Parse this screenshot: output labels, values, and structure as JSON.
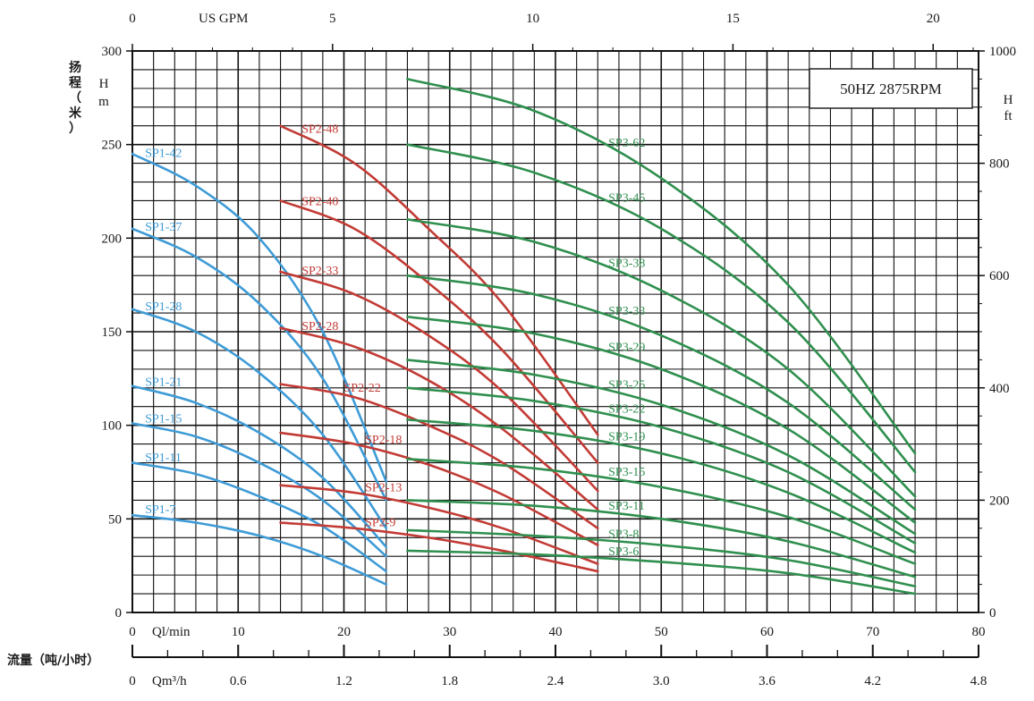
{
  "chart_data": {
    "type": "line",
    "legend_box": "50HZ  2875RPM",
    "left_axis": {
      "label_cn": "扬程（米）",
      "label": "H m",
      "range": [
        0,
        300
      ],
      "ticks": [
        0,
        50,
        100,
        150,
        200,
        250,
        300
      ]
    },
    "right_axis": {
      "label": "H ft",
      "range": [
        0,
        1000
      ],
      "ticks": [
        0,
        200,
        400,
        600,
        800,
        1000
      ]
    },
    "top_axis": {
      "label": "US GPM",
      "ticks": [
        0,
        5,
        10,
        15,
        20
      ]
    },
    "bottom_axis_lmin": {
      "label": "Ql/min",
      "range": [
        0,
        80
      ],
      "ticks": [
        0,
        10,
        20,
        30,
        40,
        50,
        60,
        70,
        80
      ]
    },
    "bottom_axis_m3h": {
      "label": "Qm³/h",
      "ticks": [
        "0",
        "0.6",
        "1.2",
        "1.8",
        "2.4",
        "3.0",
        "3.6",
        "4.2",
        "4.8"
      ]
    },
    "flow_label_cn": "流量（吨/小时）",
    "series": [
      {
        "name": "SP1-42",
        "group": "SP1",
        "color": "#3e9bd6",
        "x": [
          0,
          6,
          12,
          18,
          24
        ],
        "y": [
          245,
          228,
          200,
          150,
          70
        ]
      },
      {
        "name": "SP1-37",
        "group": "SP1",
        "color": "#3e9bd6",
        "x": [
          0,
          6,
          12,
          18,
          24
        ],
        "y": [
          205,
          190,
          165,
          125,
          60
        ]
      },
      {
        "name": "SP1-28",
        "group": "SP1",
        "color": "#3e9bd6",
        "x": [
          0,
          6,
          12,
          18,
          24
        ],
        "y": [
          162,
          150,
          128,
          95,
          45
        ]
      },
      {
        "name": "SP1-21",
        "group": "SP1",
        "color": "#3e9bd6",
        "x": [
          0,
          6,
          12,
          18,
          24
        ],
        "y": [
          121,
          112,
          96,
          72,
          35
        ]
      },
      {
        "name": "SP1-15",
        "group": "SP1",
        "color": "#3e9bd6",
        "x": [
          0,
          6,
          12,
          18,
          24
        ],
        "y": [
          101,
          94,
          80,
          60,
          30
        ]
      },
      {
        "name": "SP1-11",
        "group": "SP1",
        "color": "#3e9bd6",
        "x": [
          0,
          6,
          12,
          18,
          24
        ],
        "y": [
          80,
          74,
          62,
          46,
          22
        ]
      },
      {
        "name": "SP1-7",
        "group": "SP1",
        "color": "#3e9bd6",
        "x": [
          0,
          6,
          12,
          18,
          24
        ],
        "y": [
          52,
          48,
          41,
          30,
          15
        ]
      },
      {
        "name": "SP2-48",
        "group": "SP2",
        "color": "#c23b35",
        "x": [
          14,
          21,
          28,
          35,
          44
        ],
        "y": [
          260,
          240,
          205,
          165,
          95
        ]
      },
      {
        "name": "SP2-40",
        "group": "SP2",
        "color": "#c23b35",
        "x": [
          14,
          21,
          28,
          35,
          44
        ],
        "y": [
          220,
          205,
          176,
          140,
          80
        ]
      },
      {
        "name": "SP2-33",
        "group": "SP2",
        "color": "#c23b35",
        "x": [
          14,
          21,
          28,
          35,
          44
        ],
        "y": [
          182,
          170,
          148,
          118,
          65
        ]
      },
      {
        "name": "SP2-28",
        "group": "SP2",
        "color": "#c23b35",
        "x": [
          14,
          21,
          28,
          35,
          44
        ],
        "y": [
          152,
          142,
          124,
          98,
          55
        ]
      },
      {
        "name": "SP2-22",
        "group": "SP2",
        "color": "#c23b35",
        "x": [
          14,
          21,
          28,
          35,
          44
        ],
        "y": [
          122,
          115,
          100,
          80,
          45
        ]
      },
      {
        "name": "SP2-18",
        "group": "SP2",
        "color": "#c23b35",
        "x": [
          14,
          21,
          28,
          35,
          44
        ],
        "y": [
          96,
          90,
          79,
          63,
          36
        ]
      },
      {
        "name": "SP2-13",
        "group": "SP2",
        "color": "#c23b35",
        "x": [
          14,
          21,
          28,
          35,
          44
        ],
        "y": [
          68,
          64,
          56,
          45,
          26
        ]
      },
      {
        "name": "SP2-9",
        "group": "SP2",
        "color": "#c23b35",
        "x": [
          14,
          21,
          28,
          35,
          44
        ],
        "y": [
          48,
          45,
          40,
          33,
          22
        ]
      },
      {
        "name": "SP3-62",
        "group": "SP3",
        "color": "#2f8f4e",
        "x": [
          26,
          38,
          50,
          62,
          74
        ],
        "y": [
          285,
          268,
          232,
          175,
          85
        ]
      },
      {
        "name": "SP3-45",
        "group": "SP3",
        "color": "#2f8f4e",
        "x": [
          26,
          38,
          50,
          62,
          74
        ],
        "y": [
          250,
          235,
          205,
          155,
          75
        ]
      },
      {
        "name": "SP3-38",
        "group": "SP3",
        "color": "#2f8f4e",
        "x": [
          26,
          38,
          50,
          62,
          74
        ],
        "y": [
          210,
          198,
          172,
          130,
          62
        ]
      },
      {
        "name": "SP3-33",
        "group": "SP3",
        "color": "#2f8f4e",
        "x": [
          26,
          38,
          50,
          62,
          74
        ],
        "y": [
          180,
          170,
          148,
          112,
          55
        ]
      },
      {
        "name": "SP3-29",
        "group": "SP3",
        "color": "#2f8f4e",
        "x": [
          26,
          38,
          50,
          62,
          74
        ],
        "y": [
          158,
          149,
          130,
          98,
          48
        ]
      },
      {
        "name": "SP3-25",
        "group": "SP3",
        "color": "#2f8f4e",
        "x": [
          26,
          38,
          50,
          62,
          74
        ],
        "y": [
          135,
          127,
          111,
          84,
          42
        ]
      },
      {
        "name": "SP3-22",
        "group": "SP3",
        "color": "#2f8f4e",
        "x": [
          26,
          38,
          50,
          62,
          74
        ],
        "y": [
          120,
          113,
          99,
          75,
          37
        ]
      },
      {
        "name": "SP3-19",
        "group": "SP3",
        "color": "#2f8f4e",
        "x": [
          26,
          38,
          50,
          62,
          74
        ],
        "y": [
          103,
          97,
          85,
          64,
          32
        ]
      },
      {
        "name": "SP3-15",
        "group": "SP3",
        "color": "#2f8f4e",
        "x": [
          26,
          38,
          50,
          62,
          74
        ],
        "y": [
          82,
          77,
          67,
          51,
          26
        ]
      },
      {
        "name": "SP3-11",
        "group": "SP3",
        "color": "#2f8f4e",
        "x": [
          26,
          38,
          50,
          62,
          74
        ],
        "y": [
          60,
          57,
          50,
          38,
          19
        ]
      },
      {
        "name": "SP3-8",
        "group": "SP3",
        "color": "#2f8f4e",
        "x": [
          26,
          38,
          50,
          62,
          74
        ],
        "y": [
          44,
          41,
          36,
          28,
          14
        ]
      },
      {
        "name": "SP3-6",
        "group": "SP3",
        "color": "#2f8f4e",
        "x": [
          26,
          38,
          50,
          62,
          74
        ],
        "y": [
          33,
          31,
          27,
          21,
          10
        ]
      }
    ],
    "curve_labels": [
      {
        "text": "SP1-42",
        "series": "SP1-42",
        "color": "#3e9bd6",
        "at_x": 1.2
      },
      {
        "text": "SP1-37",
        "series": "SP1-37",
        "color": "#3e9bd6",
        "at_x": 1.2
      },
      {
        "text": "SP1-28",
        "series": "SP1-28",
        "color": "#3e9bd6",
        "at_x": 1.2
      },
      {
        "text": "SP1-21",
        "series": "SP1-21",
        "color": "#3e9bd6",
        "at_x": 1.2
      },
      {
        "text": "SP1-15",
        "series": "SP1-15",
        "color": "#3e9bd6",
        "at_x": 1.2
      },
      {
        "text": "SP1-11",
        "series": "SP1-11",
        "color": "#3e9bd6",
        "at_x": 1.2
      },
      {
        "text": "SP1-7",
        "series": "SP1-7",
        "color": "#3e9bd6",
        "at_x": 1.2
      },
      {
        "text": "SP2-48",
        "series": "SP2-48",
        "color": "#c23b35",
        "at_x": 16
      },
      {
        "text": "SP2-40",
        "series": "SP2-40",
        "color": "#c23b35",
        "at_x": 16
      },
      {
        "text": "SP2-33",
        "series": "SP2-33",
        "color": "#c23b35",
        "at_x": 16
      },
      {
        "text": "SP2-28",
        "series": "SP2-28",
        "color": "#c23b35",
        "at_x": 16
      },
      {
        "text": "SP2-22",
        "series": "SP2-22",
        "color": "#c23b35",
        "at_x": 20
      },
      {
        "text": "SP2-18",
        "series": "SP2-18",
        "color": "#c23b35",
        "at_x": 22
      },
      {
        "text": "SP2-13",
        "series": "SP2-13",
        "color": "#c23b35",
        "at_x": 22
      },
      {
        "text": "SP2-9",
        "series": "SP2-9",
        "color": "#c23b35",
        "at_x": 22
      },
      {
        "text": "SP3-62",
        "series": "SP3-62",
        "color": "#2f8f4e",
        "at_x": 45
      },
      {
        "text": "SP3-45",
        "series": "SP3-45",
        "color": "#2f8f4e",
        "at_x": 45
      },
      {
        "text": "SP3-38",
        "series": "SP3-38",
        "color": "#2f8f4e",
        "at_x": 45
      },
      {
        "text": "SP3-33",
        "series": "SP3-33",
        "color": "#2f8f4e",
        "at_x": 45
      },
      {
        "text": "SP3-29",
        "series": "SP3-29",
        "color": "#2f8f4e",
        "at_x": 45
      },
      {
        "text": "SP3-25",
        "series": "SP3-25",
        "color": "#2f8f4e",
        "at_x": 45
      },
      {
        "text": "SP3-22",
        "series": "SP3-22",
        "color": "#2f8f4e",
        "at_x": 45
      },
      {
        "text": "SP3-19",
        "series": "SP3-19",
        "color": "#2f8f4e",
        "at_x": 45
      },
      {
        "text": "SP3-15",
        "series": "SP3-15",
        "color": "#2f8f4e",
        "at_x": 45
      },
      {
        "text": "SP3-11",
        "series": "SP3-11",
        "color": "#2f8f4e",
        "at_x": 45
      },
      {
        "text": "SP3-8",
        "series": "SP3-8",
        "color": "#2f8f4e",
        "at_x": 45
      },
      {
        "text": "SP3-6",
        "series": "SP3-6",
        "color": "#2f8f4e",
        "at_x": 45
      }
    ],
    "grid": true
  }
}
